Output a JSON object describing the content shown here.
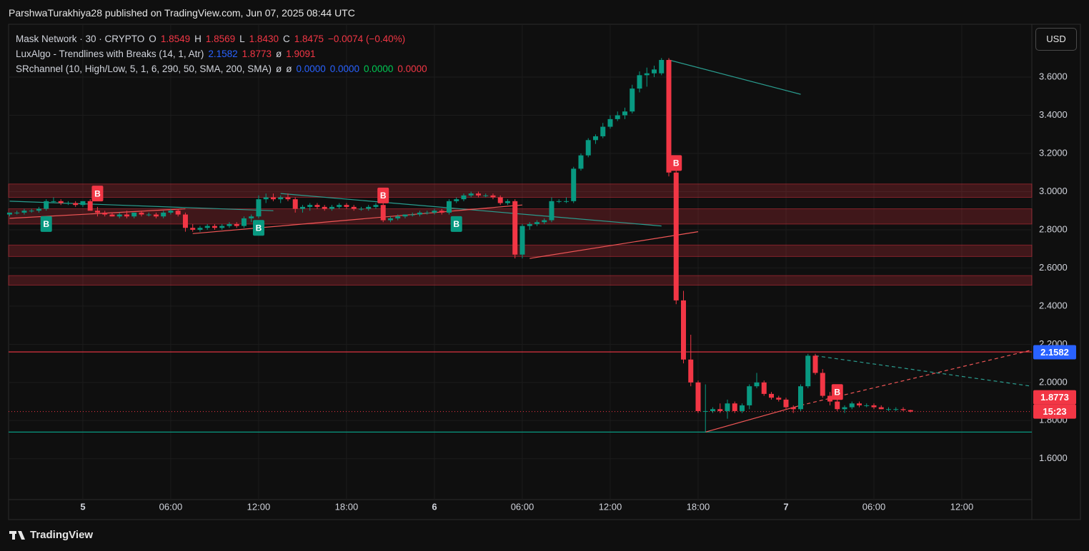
{
  "header": {
    "publish_line": "ParshwaTurakhiya28 published on TradingView.com, Jun 07, 2025 08:44 UTC",
    "currency_button": "USD",
    "footer_brand": "TradingView",
    "legend": [
      [
        {
          "text": "Mask Network · 30 · CRYPTO",
          "color": "#d1d4dc"
        },
        {
          "text": "O",
          "color": "#d1d4dc"
        },
        {
          "text": "1.8549",
          "color": "#f23645"
        },
        {
          "text": "H",
          "color": "#d1d4dc"
        },
        {
          "text": "1.8569",
          "color": "#f23645"
        },
        {
          "text": "L",
          "color": "#d1d4dc"
        },
        {
          "text": "1.8430",
          "color": "#f23645"
        },
        {
          "text": "C",
          "color": "#d1d4dc"
        },
        {
          "text": "1.8475",
          "color": "#f23645"
        },
        {
          "text": "−0.0074 (−0.40%)",
          "color": "#f23645"
        }
      ],
      [
        {
          "text": "LuxAlgo - Trendlines with Breaks (14, 1, Atr)",
          "color": "#d1d4dc"
        },
        {
          "text": "2.1582",
          "color": "#2962ff"
        },
        {
          "text": "1.8773",
          "color": "#f23645"
        },
        {
          "text": "ø",
          "color": "#d1d4dc"
        },
        {
          "text": "1.9091",
          "color": "#f23645"
        }
      ],
      [
        {
          "text": "SRchannel (10, High/Low, 5, 1, 6, 290, 50, SMA, 200, SMA)",
          "color": "#d1d4dc"
        },
        {
          "text": "ø",
          "color": "#d1d4dc"
        },
        {
          "text": "ø",
          "color": "#d1d4dc"
        },
        {
          "text": "0.0000",
          "color": "#2962ff"
        },
        {
          "text": "0.0000",
          "color": "#2962ff"
        },
        {
          "text": "0.0000",
          "color": "#00c853"
        },
        {
          "text": "0.0000",
          "color": "#f23645"
        }
      ]
    ]
  },
  "chart_data": {
    "type": "candlestick",
    "up_color": "#089981",
    "down_color": "#f23645",
    "grid": true,
    "xlim": [
      -5.07,
      64.78
    ],
    "ylim": [
      1.386,
      3.877
    ],
    "xticks": [
      {
        "value": 0,
        "label": "5"
      },
      {
        "value": 6,
        "label": "06:00"
      },
      {
        "value": 12,
        "label": "12:00"
      },
      {
        "value": 18,
        "label": "18:00"
      },
      {
        "value": 24,
        "label": "6"
      },
      {
        "value": 30,
        "label": "06:00"
      },
      {
        "value": 36,
        "label": "12:00"
      },
      {
        "value": 42,
        "label": "18:00"
      },
      {
        "value": 48,
        "label": "7"
      },
      {
        "value": 54,
        "label": "06:00"
      },
      {
        "value": 60,
        "label": "12:00"
      }
    ],
    "yticks": [
      {
        "value": 1.6,
        "label": "1.6000"
      },
      {
        "value": 1.8,
        "label": "1.8000"
      },
      {
        "value": 2.0,
        "label": "2.0000"
      },
      {
        "value": 2.2,
        "label": "2.2000"
      },
      {
        "value": 2.4,
        "label": "2.4000"
      },
      {
        "value": 2.6,
        "label": "2.6000"
      },
      {
        "value": 2.8,
        "label": "2.8000"
      },
      {
        "value": 3.0,
        "label": "3.0000"
      },
      {
        "value": 3.2,
        "label": "3.2000"
      },
      {
        "value": 3.4,
        "label": "3.4000"
      },
      {
        "value": 3.6,
        "label": "3.6000"
      }
    ],
    "x": [
      -5,
      -4.5,
      -4,
      -3.5,
      -3,
      -2.5,
      -2,
      -1.5,
      -1,
      -0.5,
      0,
      0.5,
      1,
      1.5,
      2,
      2.5,
      3,
      3.5,
      4,
      4.5,
      5,
      5.5,
      6,
      6.5,
      7,
      7.5,
      8,
      8.5,
      9,
      9.5,
      10,
      10.5,
      11,
      11.5,
      12,
      12.5,
      13,
      13.5,
      14,
      14.5,
      15,
      15.5,
      16,
      16.5,
      17,
      17.5,
      18,
      18.5,
      19,
      19.5,
      20,
      20.5,
      21,
      21.5,
      22,
      22.5,
      23,
      23.5,
      24,
      24.5,
      25,
      25.5,
      26,
      26.5,
      27,
      27.5,
      28,
      28.5,
      29,
      29.5,
      30,
      30.5,
      31,
      31.5,
      32,
      32.5,
      33,
      33.5,
      34,
      34.5,
      35,
      35.5,
      36,
      36.5,
      37,
      37.5,
      38,
      38.5,
      39,
      39.5,
      40,
      40.5,
      41,
      41.5,
      42,
      42.5,
      43,
      43.5,
      44,
      44.5,
      45,
      45.5,
      46,
      46.5,
      47,
      47.5,
      48,
      48.5,
      49,
      49.5,
      50,
      50.5,
      51,
      51.5,
      52,
      52.5,
      53,
      53.5,
      54,
      54.5,
      55,
      55.5,
      56,
      56.5
    ],
    "candles": [
      [
        2.88,
        2.89,
        2.87,
        2.89
      ],
      [
        2.89,
        2.9,
        2.88,
        2.89
      ],
      [
        2.89,
        2.91,
        2.88,
        2.9
      ],
      [
        2.9,
        2.91,
        2.89,
        2.9
      ],
      [
        2.9,
        2.92,
        2.89,
        2.91
      ],
      [
        2.91,
        2.96,
        2.9,
        2.95
      ],
      [
        2.95,
        2.97,
        2.94,
        2.95
      ],
      [
        2.95,
        2.96,
        2.93,
        2.94
      ],
      [
        2.94,
        2.95,
        2.93,
        2.94
      ],
      [
        2.94,
        2.95,
        2.92,
        2.93
      ],
      [
        2.93,
        2.95,
        2.92,
        2.95
      ],
      [
        2.95,
        2.96,
        2.92,
        2.9
      ],
      [
        2.9,
        2.92,
        2.87,
        2.89
      ],
      [
        2.89,
        2.9,
        2.87,
        2.88
      ],
      [
        2.88,
        2.89,
        2.87,
        2.87
      ],
      [
        2.87,
        2.89,
        2.86,
        2.88
      ],
      [
        2.88,
        2.9,
        2.86,
        2.87
      ],
      [
        2.87,
        2.89,
        2.86,
        2.89
      ],
      [
        2.89,
        2.9,
        2.87,
        2.88
      ],
      [
        2.88,
        2.89,
        2.87,
        2.88
      ],
      [
        2.88,
        2.89,
        2.86,
        2.87
      ],
      [
        2.87,
        2.9,
        2.86,
        2.89
      ],
      [
        2.89,
        2.91,
        2.88,
        2.9
      ],
      [
        2.9,
        2.91,
        2.87,
        2.88
      ],
      [
        2.88,
        2.89,
        2.79,
        2.81
      ],
      [
        2.81,
        2.83,
        2.79,
        2.8
      ],
      [
        2.8,
        2.82,
        2.79,
        2.81
      ],
      [
        2.81,
        2.83,
        2.8,
        2.82
      ],
      [
        2.82,
        2.83,
        2.8,
        2.81
      ],
      [
        2.81,
        2.83,
        2.8,
        2.82
      ],
      [
        2.82,
        2.84,
        2.81,
        2.83
      ],
      [
        2.83,
        2.84,
        2.81,
        2.82
      ],
      [
        2.82,
        2.87,
        2.81,
        2.86
      ],
      [
        2.86,
        2.88,
        2.84,
        2.87
      ],
      [
        2.87,
        2.98,
        2.86,
        2.96
      ],
      [
        2.96,
        2.99,
        2.94,
        2.97
      ],
      [
        2.97,
        2.99,
        2.95,
        2.96
      ],
      [
        2.96,
        2.98,
        2.94,
        2.97
      ],
      [
        2.97,
        2.99,
        2.95,
        2.96
      ],
      [
        2.96,
        2.97,
        2.89,
        2.91
      ],
      [
        2.91,
        2.93,
        2.89,
        2.92
      ],
      [
        2.92,
        2.94,
        2.9,
        2.93
      ],
      [
        2.93,
        2.94,
        2.91,
        2.92
      ],
      [
        2.92,
        2.93,
        2.9,
        2.91
      ],
      [
        2.91,
        2.93,
        2.9,
        2.92
      ],
      [
        2.92,
        2.94,
        2.91,
        2.93
      ],
      [
        2.93,
        2.94,
        2.91,
        2.92
      ],
      [
        2.92,
        2.93,
        2.9,
        2.91
      ],
      [
        2.91,
        2.92,
        2.9,
        2.91
      ],
      [
        2.91,
        2.93,
        2.9,
        2.92
      ],
      [
        2.92,
        2.94,
        2.91,
        2.93
      ],
      [
        2.93,
        2.95,
        2.84,
        2.85
      ],
      [
        2.85,
        2.87,
        2.84,
        2.86
      ],
      [
        2.86,
        2.88,
        2.85,
        2.87
      ],
      [
        2.87,
        2.88,
        2.86,
        2.88
      ],
      [
        2.88,
        2.89,
        2.87,
        2.88
      ],
      [
        2.88,
        2.9,
        2.87,
        2.89
      ],
      [
        2.89,
        2.9,
        2.88,
        2.89
      ],
      [
        2.89,
        2.91,
        2.88,
        2.9
      ],
      [
        2.9,
        2.91,
        2.88,
        2.89
      ],
      [
        2.89,
        2.96,
        2.88,
        2.95
      ],
      [
        2.95,
        2.97,
        2.94,
        2.96
      ],
      [
        2.96,
        2.99,
        2.95,
        2.98
      ],
      [
        2.98,
        3.0,
        2.97,
        2.99
      ],
      [
        2.99,
        3.0,
        2.97,
        2.98
      ],
      [
        2.98,
        2.99,
        2.97,
        2.98
      ],
      [
        2.98,
        2.99,
        2.96,
        2.97
      ],
      [
        2.97,
        2.98,
        2.93,
        2.94
      ],
      [
        2.94,
        2.96,
        2.93,
        2.95
      ],
      [
        2.95,
        2.96,
        2.65,
        2.67
      ],
      [
        2.67,
        2.83,
        2.65,
        2.82
      ],
      [
        2.82,
        2.84,
        2.8,
        2.83
      ],
      [
        2.83,
        2.85,
        2.82,
        2.84
      ],
      [
        2.84,
        2.86,
        2.83,
        2.85
      ],
      [
        2.85,
        2.97,
        2.84,
        2.95
      ],
      [
        2.95,
        2.96,
        2.94,
        2.95
      ],
      [
        2.95,
        2.97,
        2.94,
        2.95
      ],
      [
        2.95,
        3.13,
        2.94,
        3.12
      ],
      [
        3.12,
        3.2,
        3.11,
        3.19
      ],
      [
        3.19,
        3.28,
        3.18,
        3.27
      ],
      [
        3.27,
        3.3,
        3.25,
        3.29
      ],
      [
        3.29,
        3.36,
        3.28,
        3.34
      ],
      [
        3.34,
        3.4,
        3.33,
        3.38
      ],
      [
        3.38,
        3.42,
        3.37,
        3.4
      ],
      [
        3.4,
        3.44,
        3.38,
        3.42
      ],
      [
        3.42,
        3.56,
        3.41,
        3.54
      ],
      [
        3.54,
        3.63,
        3.52,
        3.61
      ],
      [
        3.61,
        3.65,
        3.55,
        3.62
      ],
      [
        3.62,
        3.66,
        3.6,
        3.64
      ],
      [
        3.62,
        3.7,
        3.61,
        3.69
      ],
      [
        3.69,
        3.7,
        3.08,
        3.1
      ],
      [
        3.1,
        3.15,
        2.41,
        2.43
      ],
      [
        2.43,
        2.48,
        2.1,
        2.12
      ],
      [
        2.12,
        2.25,
        1.98,
        2.0
      ],
      [
        2.0,
        2.01,
        1.84,
        1.85
      ],
      [
        1.85,
        1.99,
        1.74,
        1.85
      ],
      [
        1.85,
        1.87,
        1.84,
        1.86
      ],
      [
        1.86,
        1.89,
        1.84,
        1.85
      ],
      [
        1.85,
        1.91,
        1.81,
        1.89
      ],
      [
        1.89,
        1.9,
        1.84,
        1.85
      ],
      [
        1.85,
        1.89,
        1.84,
        1.88
      ],
      [
        1.88,
        1.99,
        1.86,
        1.98
      ],
      [
        1.98,
        2.05,
        1.97,
        2.0
      ],
      [
        2.0,
        2.01,
        1.93,
        1.94
      ],
      [
        1.94,
        1.95,
        1.91,
        1.92
      ],
      [
        1.92,
        1.93,
        1.9,
        1.91
      ],
      [
        1.91,
        1.92,
        1.86,
        1.87
      ],
      [
        1.87,
        1.88,
        1.84,
        1.86
      ],
      [
        1.86,
        1.99,
        1.85,
        1.98
      ],
      [
        1.98,
        2.15,
        1.97,
        2.14
      ],
      [
        2.14,
        2.15,
        2.04,
        2.05
      ],
      [
        2.05,
        2.07,
        1.92,
        1.93
      ],
      [
        1.93,
        1.95,
        1.88,
        1.9
      ],
      [
        1.9,
        1.91,
        1.85,
        1.86
      ],
      [
        1.86,
        1.88,
        1.84,
        1.87
      ],
      [
        1.87,
        1.9,
        1.86,
        1.89
      ],
      [
        1.89,
        1.9,
        1.87,
        1.88
      ],
      [
        1.88,
        1.89,
        1.87,
        1.88
      ],
      [
        1.88,
        1.89,
        1.86,
        1.87
      ],
      [
        1.87,
        1.88,
        1.86,
        1.86
      ],
      [
        1.86,
        1.87,
        1.85,
        1.86
      ],
      [
        1.86,
        1.87,
        1.85,
        1.86
      ],
      [
        1.86,
        1.87,
        1.85,
        1.8549
      ],
      [
        1.8549,
        1.8569,
        1.843,
        1.8475
      ]
    ],
    "sr_zones": [
      [
        2.97,
        3.04
      ],
      [
        2.83,
        2.91
      ],
      [
        2.66,
        2.72
      ],
      [
        2.51,
        2.56
      ]
    ],
    "sr_color": "#f23645",
    "levels": [
      {
        "value": 2.16,
        "color": "#f23645"
      },
      {
        "value": 1.74,
        "color": "#089981"
      }
    ],
    "trendlines": [
      {
        "color": "#2a9d8f",
        "dashed": false,
        "points": [
          [
            -5,
            2.95
          ],
          [
            13,
            2.9
          ]
        ]
      },
      {
        "color": "#2a9d8f",
        "dashed": false,
        "points": [
          [
            13.5,
            2.99
          ],
          [
            39.5,
            2.82
          ]
        ]
      },
      {
        "color": "#2a9d8f",
        "dashed": false,
        "points": [
          [
            40,
            3.69
          ],
          [
            49,
            3.51
          ]
        ]
      },
      {
        "color": "#2a9d8f",
        "dashed": true,
        "points": [
          [
            50,
            2.14
          ],
          [
            64.78,
            1.98
          ]
        ]
      },
      {
        "color": "#f05656",
        "dashed": false,
        "points": [
          [
            -5,
            2.86
          ],
          [
            7,
            2.91
          ]
        ]
      },
      {
        "color": "#f05656",
        "dashed": false,
        "points": [
          [
            7.5,
            2.78
          ],
          [
            30,
            2.93
          ]
        ]
      },
      {
        "color": "#f05656",
        "dashed": false,
        "points": [
          [
            30.5,
            2.65
          ],
          [
            42,
            2.79
          ]
        ]
      },
      {
        "color": "#f05656",
        "dashed": false,
        "points": [
          [
            42.5,
            1.74
          ],
          [
            49,
            1.88
          ]
        ]
      },
      {
        "color": "#f05656",
        "dashed": true,
        "points": [
          [
            49,
            1.88
          ],
          [
            64.78,
            2.17
          ]
        ]
      }
    ],
    "break_labels": [
      {
        "x": -2.5,
        "y": 2.83,
        "label": "B",
        "color": "#089981"
      },
      {
        "x": 1,
        "y": 2.99,
        "label": "B",
        "color": "#f23645"
      },
      {
        "x": 12,
        "y": 2.81,
        "label": "B",
        "color": "#089981"
      },
      {
        "x": 20.5,
        "y": 2.98,
        "label": "B",
        "color": "#f23645"
      },
      {
        "x": 25.5,
        "y": 2.83,
        "label": "B",
        "color": "#089981"
      },
      {
        "x": 40.5,
        "y": 3.15,
        "label": "B",
        "color": "#f23645"
      },
      {
        "x": 51.5,
        "y": 1.95,
        "label": "B",
        "color": "#f23645"
      }
    ],
    "price_labels": [
      {
        "value": 2.1582,
        "label": "2.1582",
        "color": "#2962ff"
      },
      {
        "value": 1.8773,
        "label": "1.8773",
        "color": "#f23645"
      }
    ],
    "countdown": "15:23"
  }
}
